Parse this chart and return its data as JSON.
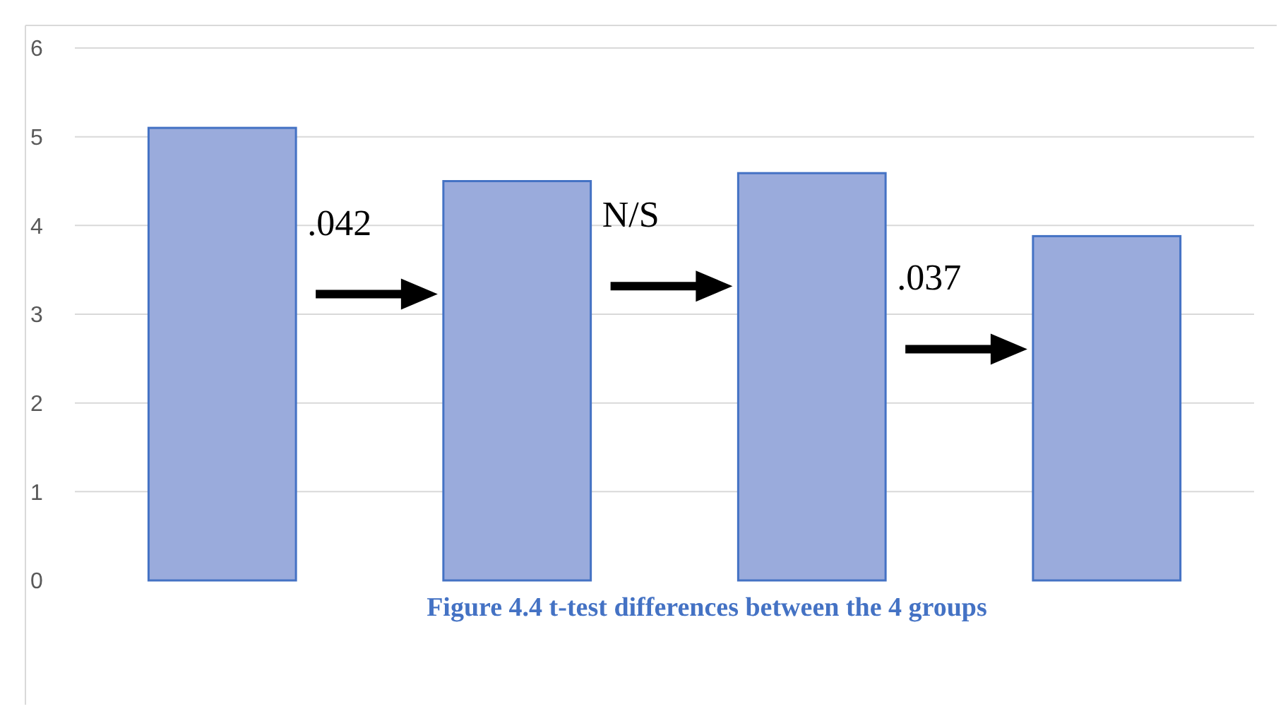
{
  "chart_data": {
    "type": "bar",
    "categories": [
      null,
      null,
      null,
      null
    ],
    "values": [
      5.1,
      4.5,
      4.59,
      3.88
    ],
    "color": "#9aabdc",
    "ylim": [
      0,
      6
    ],
    "yticks": [
      0,
      1,
      2,
      3,
      4,
      5,
      6
    ],
    "grid": "y",
    "annotations": [
      ".042",
      "N/S",
      ".037",
      "Figure 4.4 t-test differences between the 4 groups"
    ]
  }
}
